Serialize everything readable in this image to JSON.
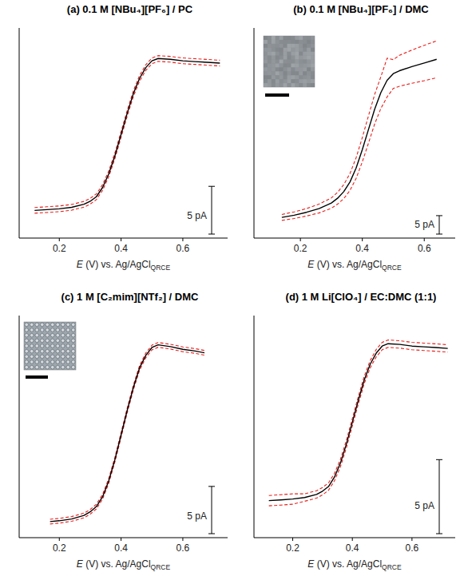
{
  "chart_data": [
    {
      "type": "line",
      "title": "(a) 0.1 M [NBu₄][PF₆] / PC",
      "xlabel": [
        "E",
        " (V) vs. Ag/AgCl",
        "QRCE"
      ],
      "x": [
        0.12,
        0.16,
        0.2,
        0.24,
        0.28,
        0.3,
        0.32,
        0.34,
        0.36,
        0.38,
        0.4,
        0.42,
        0.44,
        0.46,
        0.48,
        0.5,
        0.52,
        0.56,
        0.6,
        0.64,
        0.68,
        0.72
      ],
      "series": [
        {
          "color": "#e8201c",
          "line_style": "dashed",
          "values": [
            3.2,
            3.28,
            3.36,
            3.52,
            3.84,
            4.15,
            4.63,
            5.59,
            7.02,
            8.92,
            11.15,
            13.38,
            15.44,
            17.03,
            18.15,
            18.86,
            19.1,
            19.02,
            18.86,
            18.78,
            18.7,
            18.62
          ]
        },
        {
          "color": "#e8201c",
          "line_style": "dashed",
          "values": [
            2.6,
            2.68,
            2.76,
            2.92,
            3.24,
            3.55,
            4.03,
            4.99,
            6.42,
            8.32,
            10.55,
            12.78,
            14.84,
            16.43,
            17.55,
            18.26,
            18.5,
            18.42,
            18.26,
            18.18,
            18.1,
            18.02
          ]
        },
        {
          "color": "#000000",
          "line_style": "solid",
          "values": [
            2.9,
            2.98,
            3.06,
            3.22,
            3.54,
            3.85,
            4.33,
            5.29,
            6.72,
            8.62,
            10.85,
            13.08,
            15.14,
            16.73,
            17.85,
            18.56,
            18.8,
            18.72,
            18.56,
            18.48,
            18.4,
            18.32
          ]
        }
      ],
      "xlim": [
        0.07,
        0.745
      ],
      "ylim": [
        0,
        22
      ],
      "xticks": [
        0.2,
        0.4,
        0.6
      ],
      "tick_labels": "x",
      "scale_bar": {
        "value": 5,
        "label": "5 pA"
      }
    },
    {
      "type": "line",
      "title": "(b) 0.1 M [NBu₄][PF₆] / DMC",
      "xlabel": [
        "E",
        " (V) vs. Ag/AgCl",
        "QRCE"
      ],
      "x": [
        0.14,
        0.18,
        0.22,
        0.26,
        0.3,
        0.32,
        0.34,
        0.36,
        0.38,
        0.4,
        0.42,
        0.44,
        0.46,
        0.48,
        0.5,
        0.52,
        0.56,
        0.6,
        0.64
      ],
      "series": [
        {
          "color": "#e8201c",
          "line_style": "dashed",
          "values": [
            6.4,
            7.1,
            8.0,
            9.2,
            10.9,
            12.4,
            14.5,
            17.5,
            21.8,
            27.3,
            33.2,
            39.0,
            43.8,
            48.8,
            48.4,
            49.6,
            51.0,
            52.3,
            53.5
          ]
        },
        {
          "color": "#e8201c",
          "line_style": "dashed",
          "values": [
            4.8,
            5.3,
            6.0,
            6.8,
            8.1,
            9.2,
            10.7,
            12.9,
            16.2,
            20.7,
            25.8,
            31.0,
            35.2,
            38.3,
            40.6,
            41.2,
            42.0,
            42.7,
            43.5
          ]
        },
        {
          "color": "#000000",
          "line_style": "solid",
          "values": [
            5.6,
            6.2,
            7.0,
            8.0,
            9.5,
            10.8,
            12.6,
            15.2,
            19.0,
            24.0,
            29.5,
            35.0,
            39.5,
            42.8,
            44.6,
            45.4,
            46.5,
            47.5,
            48.5
          ]
        }
      ],
      "xlim": [
        0.05,
        0.7
      ],
      "ylim": [
        0,
        57
      ],
      "xticks": [
        0.2,
        0.4,
        0.6
      ],
      "tick_labels": "x",
      "scale_bar": {
        "value": 5,
        "label": "5 pA"
      }
    },
    {
      "type": "line",
      "title": "(c) 1 M [C₂mim][NTf₂] / DMC",
      "xlabel": [
        "E",
        " (V) vs. Ag/AgCl",
        "QRCE"
      ],
      "x": [
        0.17,
        0.2,
        0.24,
        0.28,
        0.3,
        0.32,
        0.34,
        0.36,
        0.38,
        0.4,
        0.42,
        0.44,
        0.46,
        0.48,
        0.5,
        0.52,
        0.56,
        0.6,
        0.64,
        0.67
      ],
      "series": [
        {
          "color": "#e8201c",
          "line_style": "dashed",
          "values": [
            1.95,
            2.04,
            2.23,
            2.6,
            2.98,
            3.54,
            4.57,
            6.25,
            8.5,
            11.11,
            13.73,
            16.16,
            18.22,
            19.53,
            20.37,
            20.65,
            20.46,
            20.18,
            20.0,
            19.81
          ]
        },
        {
          "color": "#e8201c",
          "line_style": "dashed",
          "values": [
            1.45,
            1.54,
            1.73,
            2.1,
            2.48,
            3.04,
            4.07,
            5.75,
            8.0,
            10.61,
            13.23,
            15.66,
            17.72,
            19.03,
            19.87,
            20.15,
            19.96,
            19.68,
            19.5,
            19.31
          ]
        },
        {
          "color": "#000000",
          "line_style": "solid",
          "values": [
            1.7,
            1.79,
            1.98,
            2.35,
            2.73,
            3.29,
            4.32,
            6.0,
            8.25,
            10.86,
            13.48,
            15.91,
            17.97,
            19.28,
            20.12,
            20.4,
            20.21,
            19.93,
            19.75,
            19.56
          ]
        }
      ],
      "xlim": [
        0.07,
        0.745
      ],
      "ylim": [
        0,
        23.5
      ],
      "xticks": [
        0.2,
        0.4,
        0.6
      ],
      "tick_labels": "x",
      "scale_bar": {
        "value": 5,
        "label": "5 pA"
      }
    },
    {
      "type": "line",
      "title": "(d) 1 M Li[ClO₄] / EC:DMC (1:1)",
      "xlabel": [
        "E",
        " (V) vs. Ag/AgCl",
        "QRCE"
      ],
      "x": [
        0.12,
        0.16,
        0.2,
        0.24,
        0.28,
        0.3,
        0.32,
        0.34,
        0.36,
        0.38,
        0.4,
        0.42,
        0.44,
        0.46,
        0.48,
        0.5,
        0.52,
        0.56,
        0.6,
        0.64,
        0.68,
        0.72
      ],
      "series": [
        {
          "color": "#e8201c",
          "line_style": "dashed",
          "values": [
            2.85,
            2.9,
            2.96,
            2.96,
            3.17,
            3.39,
            3.7,
            4.34,
            5.29,
            6.57,
            8.05,
            9.53,
            10.91,
            11.97,
            12.71,
            13.19,
            13.35,
            13.3,
            13.19,
            13.14,
            13.09,
            13.03
          ]
        },
        {
          "color": "#e8201c",
          "line_style": "dashed",
          "values": [
            2.15,
            2.2,
            2.26,
            2.46,
            2.67,
            2.89,
            3.2,
            3.84,
            4.79,
            6.07,
            7.55,
            9.03,
            10.41,
            11.47,
            12.21,
            12.69,
            12.85,
            12.8,
            12.69,
            12.64,
            12.59,
            12.53
          ]
        },
        {
          "color": "#000000",
          "line_style": "solid",
          "values": [
            2.5,
            2.55,
            2.61,
            2.71,
            2.92,
            3.14,
            3.45,
            4.09,
            5.04,
            6.32,
            7.8,
            9.28,
            10.66,
            11.72,
            12.46,
            12.94,
            13.1,
            13.05,
            12.94,
            12.89,
            12.84,
            12.78
          ]
        }
      ],
      "xlim": [
        0.07,
        0.745
      ],
      "ylim": [
        0,
        15
      ],
      "xticks": [
        0.2,
        0.4,
        0.6
      ],
      "tick_labels": "x",
      "scale_bar": {
        "value": 5,
        "label": "5 pA"
      }
    }
  ]
}
